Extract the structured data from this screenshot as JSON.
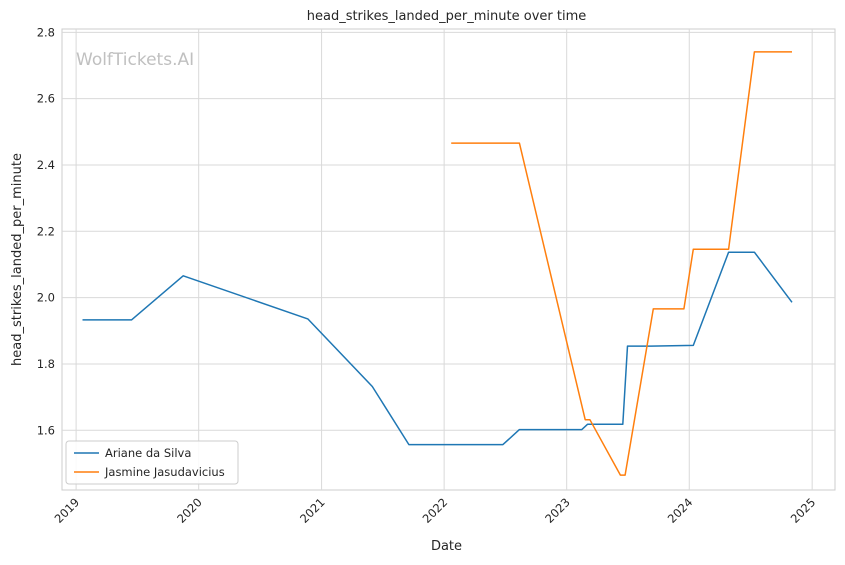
{
  "watermark": "WolfTickets.AI",
  "chart_data": {
    "type": "line",
    "title": "head_strikes_landed_per_minute over time",
    "xlabel": "Date",
    "ylabel": "head_strikes_landed_per_minute",
    "x_is_date": true,
    "xlim": [
      "2018-11-20",
      "2025-03-10"
    ],
    "ylim": [
      1.42,
      2.81
    ],
    "x_ticks": [
      {
        "value": "2019-01-01",
        "label": "2019"
      },
      {
        "value": "2020-01-01",
        "label": "2020"
      },
      {
        "value": "2021-01-01",
        "label": "2021"
      },
      {
        "value": "2022-01-01",
        "label": "2022"
      },
      {
        "value": "2023-01-01",
        "label": "2023"
      },
      {
        "value": "2024-01-01",
        "label": "2024"
      },
      {
        "value": "2025-01-01",
        "label": "2025"
      }
    ],
    "y_ticks": [
      {
        "value": 1.6,
        "label": "1.6"
      },
      {
        "value": 1.8,
        "label": "1.8"
      },
      {
        "value": 2.0,
        "label": "2.0"
      },
      {
        "value": 2.2,
        "label": "2.2"
      },
      {
        "value": 2.4,
        "label": "2.4"
      },
      {
        "value": 2.6,
        "label": "2.6"
      },
      {
        "value": 2.8,
        "label": "2.8"
      }
    ],
    "grid": true,
    "legend_position": "lower left",
    "series": [
      {
        "name": "Ariane da Silva",
        "color": "#1f77b4",
        "points": [
          {
            "x": "2019-01-20",
            "y": 1.933
          },
          {
            "x": "2019-06-15",
            "y": 1.933
          },
          {
            "x": "2019-11-16",
            "y": 2.066
          },
          {
            "x": "2020-11-21",
            "y": 1.936
          },
          {
            "x": "2021-06-01",
            "y": 1.732
          },
          {
            "x": "2021-09-18",
            "y": 1.557
          },
          {
            "x": "2022-06-25",
            "y": 1.557
          },
          {
            "x": "2022-08-13",
            "y": 1.602
          },
          {
            "x": "2023-02-15",
            "y": 1.602
          },
          {
            "x": "2023-03-04",
            "y": 1.618
          },
          {
            "x": "2023-06-17",
            "y": 1.618
          },
          {
            "x": "2023-07-01",
            "y": 1.854
          },
          {
            "x": "2023-09-09",
            "y": 1.854
          },
          {
            "x": "2024-01-13",
            "y": 1.856
          },
          {
            "x": "2024-04-27",
            "y": 2.137
          },
          {
            "x": "2024-07-13",
            "y": 2.137
          },
          {
            "x": "2024-11-02",
            "y": 1.986
          }
        ]
      },
      {
        "name": "Jasmine Jasudavicius",
        "color": "#ff7f0e",
        "points": [
          {
            "x": "2022-01-22",
            "y": 2.466
          },
          {
            "x": "2022-08-13",
            "y": 2.466
          },
          {
            "x": "2023-02-25",
            "y": 1.632
          },
          {
            "x": "2023-03-11",
            "y": 1.632
          },
          {
            "x": "2023-06-10",
            "y": 1.465
          },
          {
            "x": "2023-06-24",
            "y": 1.465
          },
          {
            "x": "2023-09-16",
            "y": 1.966
          },
          {
            "x": "2023-12-16",
            "y": 1.966
          },
          {
            "x": "2024-01-13",
            "y": 2.146
          },
          {
            "x": "2024-04-27",
            "y": 2.146
          },
          {
            "x": "2024-07-13",
            "y": 2.741
          },
          {
            "x": "2024-11-02",
            "y": 2.741
          }
        ]
      }
    ]
  }
}
